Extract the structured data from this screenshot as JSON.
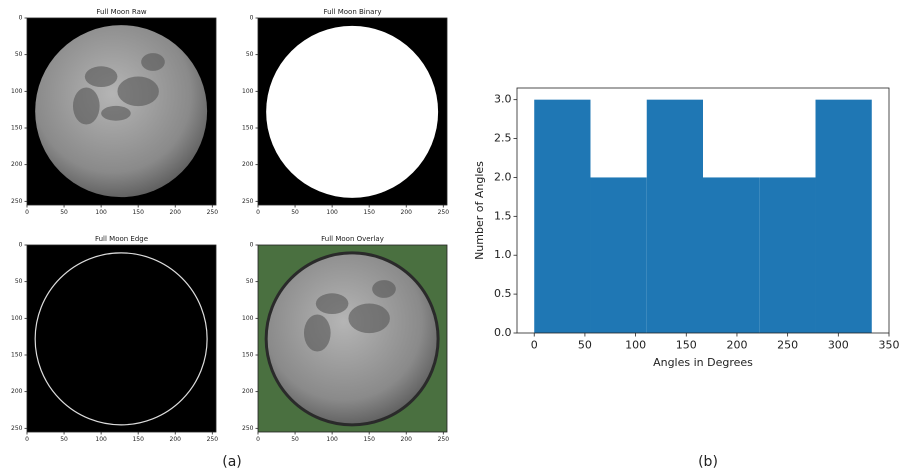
{
  "chart_data": [
    {
      "type": "image",
      "title": "Full Moon Raw",
      "xlim": [
        0,
        255
      ],
      "ylim": [
        255,
        0
      ],
      "xticks": [
        0,
        50,
        100,
        150,
        200,
        250
      ],
      "yticks": [
        0,
        50,
        100,
        150,
        200,
        250
      ]
    },
    {
      "type": "image",
      "title": "Full Moon Binary",
      "xlim": [
        0,
        255
      ],
      "ylim": [
        255,
        0
      ],
      "xticks": [
        0,
        50,
        100,
        150,
        200,
        250
      ],
      "yticks": [
        0,
        50,
        100,
        150,
        200,
        250
      ]
    },
    {
      "type": "image",
      "title": "Full Moon Edge",
      "xlim": [
        0,
        255
      ],
      "ylim": [
        255,
        0
      ],
      "xticks": [
        0,
        50,
        100,
        150,
        200,
        250
      ],
      "yticks": [
        0,
        50,
        100,
        150,
        200,
        250
      ]
    },
    {
      "type": "image",
      "title": "Full Moon Overlay",
      "xlim": [
        0,
        255
      ],
      "ylim": [
        255,
        0
      ],
      "xticks": [
        0,
        50,
        100,
        150,
        200,
        250
      ],
      "yticks": [
        0,
        50,
        100,
        150,
        200,
        250
      ]
    },
    {
      "type": "histogram",
      "x_label": "Angles in Degrees",
      "y_label": "Number of Angles",
      "bins": [
        0,
        55.5,
        111,
        166.5,
        222,
        277.5,
        333
      ],
      "values": [
        3,
        2,
        3,
        2,
        2,
        3
      ],
      "color": "#1f77b4",
      "xlim": [
        -17,
        350
      ],
      "ylim": [
        0,
        3.15
      ],
      "xticks": [
        0,
        50,
        100,
        150,
        200,
        250,
        300,
        350
      ],
      "yticks": [
        {
          "value": 0,
          "label": "0.0"
        },
        {
          "value": 0.5,
          "label": "0.5"
        },
        {
          "value": 1,
          "label": "1.0"
        },
        {
          "value": 1.5,
          "label": "1.5"
        },
        {
          "value": 2,
          "label": "2.0"
        },
        {
          "value": 2.5,
          "label": "2.5"
        },
        {
          "value": 3,
          "label": "3.0"
        }
      ]
    }
  ],
  "captions": [
    "(a)",
    "(b)"
  ]
}
